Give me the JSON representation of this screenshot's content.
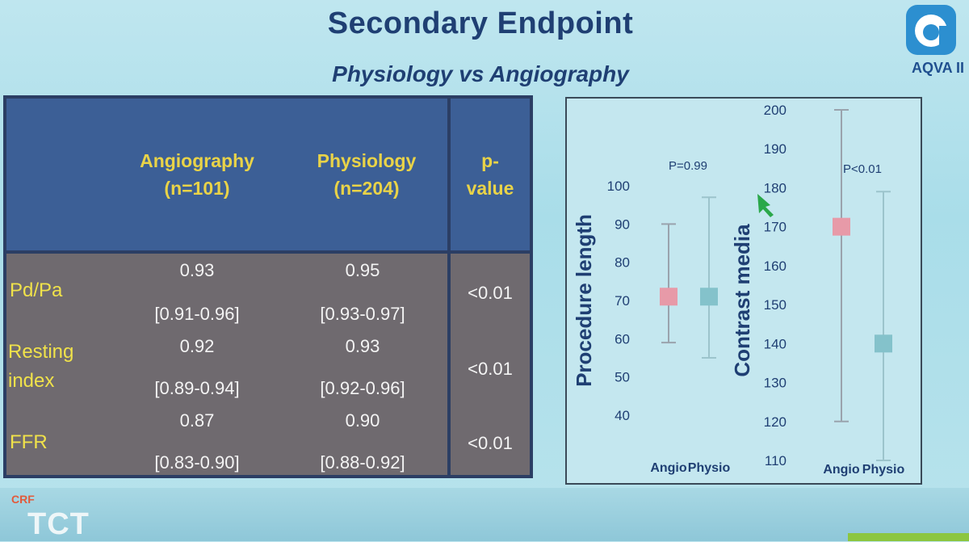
{
  "slide": {
    "title": "Secondary Endpoint",
    "subtitle": "Physiology vs Angiography",
    "logo_text": "AQVA II",
    "footer_small": "CRF",
    "footer_big": "TCT"
  },
  "table": {
    "headers": {
      "angio_1": "Angiography",
      "angio_2": "(n=101)",
      "physio_1": "Physiology",
      "physio_2": "(n=204)",
      "p_1": "p-",
      "p_2": "value"
    },
    "rows": [
      {
        "label_1": "Pd/Pa",
        "label_2": "",
        "angio": "0.93",
        "angio_ci": "[0.91-0.96]",
        "physio": "0.95",
        "physio_ci": "[0.93-0.97]",
        "p": "<0.01"
      },
      {
        "label_1": "Resting",
        "label_2": "index",
        "angio": "0.92",
        "angio_ci": "[0.89-0.94]",
        "physio": "0.93",
        "physio_ci": "[0.92-0.96]",
        "p": "<0.01"
      },
      {
        "label_1": "FFR",
        "label_2": "",
        "angio": "0.87",
        "angio_ci": "[0.83-0.90]",
        "physio": "0.90",
        "physio_ci": "[0.88-0.92]",
        "p": "<0.01"
      }
    ]
  },
  "chart_data": [
    {
      "type": "scatter",
      "ylabel": "Procedure length",
      "ylim": [
        40,
        100
      ],
      "yticks": [
        "40",
        "50",
        "60",
        "70",
        "80",
        "90",
        "100"
      ],
      "categories": [
        "Angio",
        "Physio"
      ],
      "annotation": "P=0.99",
      "points": [
        {
          "category": "Angio",
          "value": 71,
          "low": 59,
          "high": 90,
          "color": "#e79aa8"
        },
        {
          "category": "Physio",
          "value": 71,
          "low": 55,
          "high": 97,
          "color": "#84c2cb"
        }
      ]
    },
    {
      "type": "scatter",
      "ylabel": "Contrast media",
      "ylim": [
        110,
        200
      ],
      "yticks": [
        "110",
        "120",
        "130",
        "140",
        "150",
        "160",
        "170",
        "180",
        "190",
        "200"
      ],
      "categories": [
        "Angio",
        "Physio"
      ],
      "annotation": "P<0.01",
      "points": [
        {
          "category": "Angio",
          "value": 170,
          "low": 120,
          "high": 200,
          "color": "#e79aa8"
        },
        {
          "category": "Physio",
          "value": 140,
          "low": 110,
          "high": 179,
          "color": "#84c2cb"
        }
      ]
    }
  ]
}
